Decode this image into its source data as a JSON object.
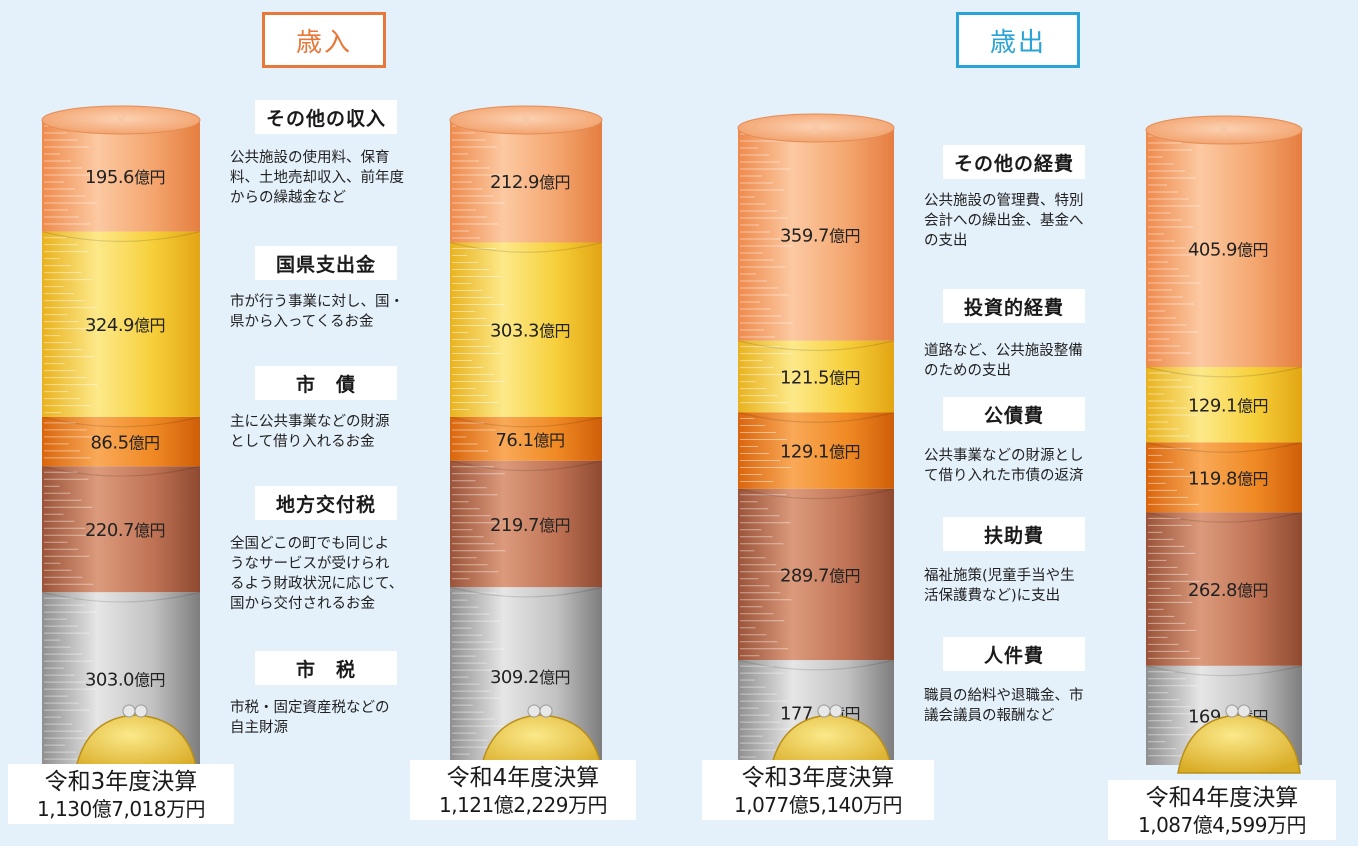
{
  "revenue": {
    "heading": "歳入",
    "categories": [
      {
        "name": "その他の収入",
        "desc": "公共施設の使用料、保育\n料、土地売却収入、前年度\nからの繰越金など"
      },
      {
        "name": "国県支出金",
        "desc": "市が行う事業に対し、国・\n県から入ってくるお金"
      },
      {
        "name": "市　債",
        "desc": "主に公共事業などの財源\nとして借り入れるお金"
      },
      {
        "name": "地方交付税",
        "desc": "全国どこの町でも同じよ\nうなサービスが受けられ\nるよう財政状況に応じて、\n国から交付されるお金"
      },
      {
        "name": "市　税",
        "desc": "市税・固定資産税などの\n自主財源"
      }
    ]
  },
  "expenditure": {
    "heading": "歳出",
    "categories": [
      {
        "name": "その他の経費",
        "desc": "公共施設の管理費、特別\n会計への繰出金、基金へ\nの支出"
      },
      {
        "name": "投資的経費",
        "desc": "道路など、公共施設整備\nのための支出"
      },
      {
        "name": "公債費",
        "desc": "公共事業などの財源とし\nて借り入れた市債の返済"
      },
      {
        "name": "扶助費",
        "desc": "福祉施策(児童手当や生\n活保護費など)に支出"
      },
      {
        "name": "人件費",
        "desc": "職員の給料や退職金、市\n議会議員の報酬など"
      }
    ]
  },
  "captions": [
    {
      "title": "令和3年度決算",
      "total": "1,130億7,018万円"
    },
    {
      "title": "令和4年度決算",
      "total": "1,121億2,229万円"
    },
    {
      "title": "令和3年度決算",
      "total": "1,077億5,140万円"
    },
    {
      "title": "令和4年度決算",
      "total": "1,087億4,599万円"
    }
  ],
  "colors": {
    "revenue_border": "#e8773a",
    "expenditure_border": "#2aa3d6",
    "other": "#f5a874",
    "yellow": "#f7d13e",
    "orange": "#f2861f",
    "brown": "#c4785a",
    "gray": "#b9b9b9",
    "purse": "#e2c13c"
  },
  "chart_data": [
    {
      "type": "bar",
      "stacked": true,
      "categories": [
        "令和3年度決算",
        "令和4年度決算"
      ],
      "series": [
        {
          "name": "市　税",
          "values": [
            303.0,
            309.2
          ],
          "labels": [
            "303.0億円",
            "309.2億円"
          ],
          "color": "gray"
        },
        {
          "name": "地方交付税",
          "values": [
            220.7,
            219.7
          ],
          "labels": [
            "220.7億円",
            "219.7億円"
          ],
          "color": "brown"
        },
        {
          "name": "市　債",
          "values": [
            86.5,
            76.1
          ],
          "labels": [
            "86.5億円",
            "76.1億円"
          ],
          "color": "orange"
        },
        {
          "name": "国県支出金",
          "values": [
            324.9,
            303.3
          ],
          "labels": [
            "324.9億円",
            "303.3億円"
          ],
          "color": "yellow"
        },
        {
          "name": "その他の収入",
          "values": [
            195.6,
            212.9
          ],
          "labels": [
            "195.6億円",
            "212.9億円"
          ],
          "color": "other"
        }
      ]
    },
    {
      "type": "bar",
      "stacked": true,
      "categories": [
        "令和3年度決算",
        "令和4年度決算"
      ],
      "series": [
        {
          "name": "人件費",
          "values": [
            177.5,
            169.9
          ],
          "labels": [
            "177.5億円",
            "169.9億円"
          ],
          "color": "gray"
        },
        {
          "name": "扶助費",
          "values": [
            289.7,
            262.8
          ],
          "labels": [
            "289.7億円",
            "262.8億円"
          ],
          "color": "brown"
        },
        {
          "name": "公債費",
          "values": [
            129.1,
            119.8
          ],
          "labels": [
            "129.1億円",
            "119.8億円"
          ],
          "color": "orange"
        },
        {
          "name": "投資的経費",
          "values": [
            121.5,
            129.1
          ],
          "labels": [
            "121.5億円",
            "129.1億円"
          ],
          "color": "yellow"
        },
        {
          "name": "その他の経費",
          "values": [
            359.7,
            405.9
          ],
          "labels": [
            "359.7億円",
            "405.9億円"
          ],
          "color": "other"
        }
      ]
    }
  ]
}
